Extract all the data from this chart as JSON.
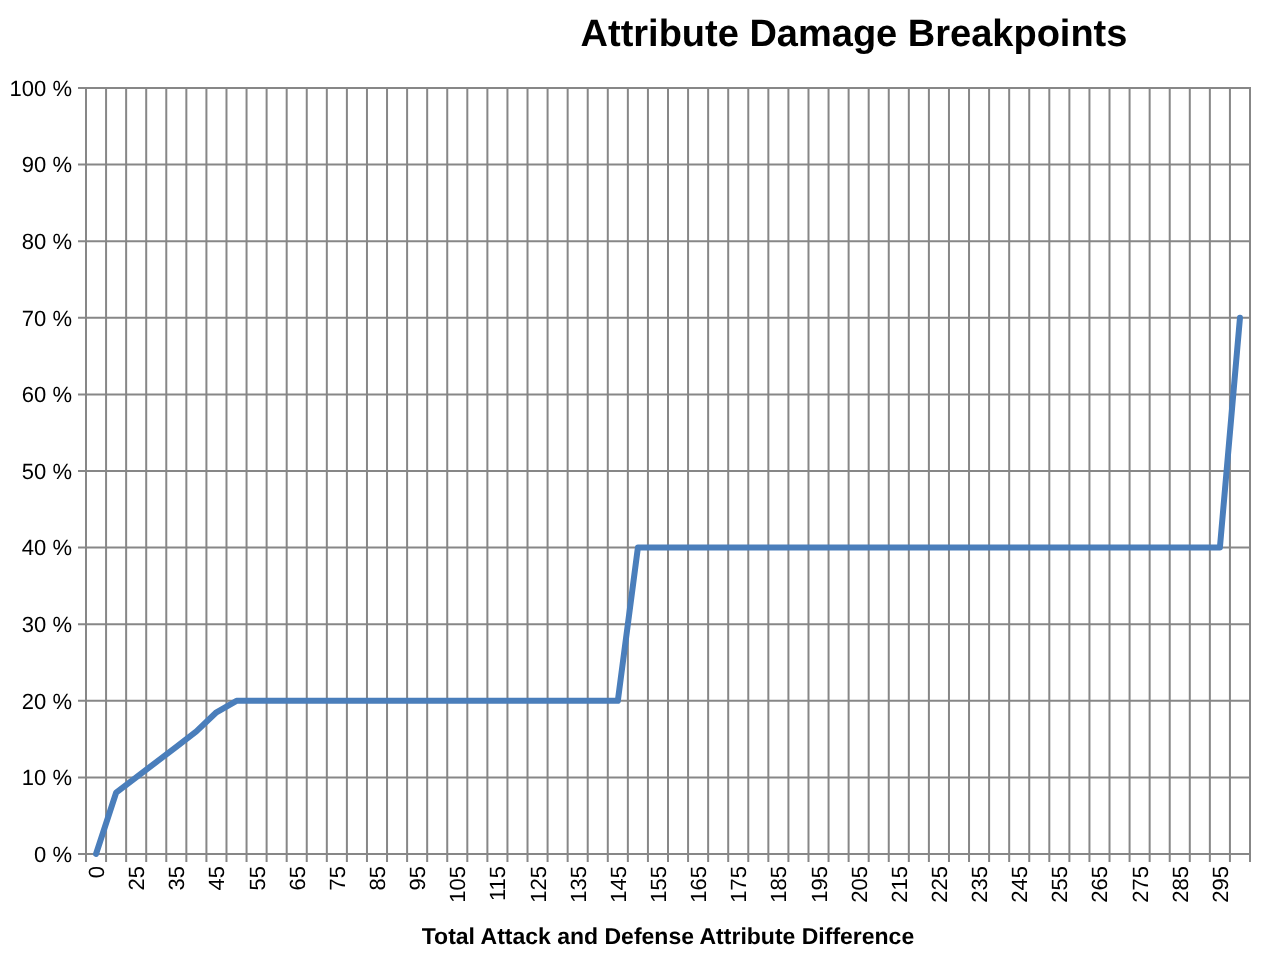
{
  "chart_data": {
    "type": "line",
    "title": "Attribute Damage Breakpoints",
    "xlabel": "Total Attack and Defense Attribute Difference",
    "categories": [
      "0",
      null,
      "25",
      null,
      "35",
      null,
      "45",
      null,
      "55",
      null,
      "65",
      null,
      "75",
      null,
      "85",
      null,
      "95",
      null,
      "105",
      null,
      "115",
      null,
      "125",
      null,
      "135",
      null,
      "145",
      null,
      "155",
      null,
      "165",
      null,
      "175",
      null,
      "185",
      null,
      "195",
      null,
      "205",
      null,
      "215",
      null,
      "225",
      null,
      "235",
      null,
      "245",
      null,
      "255",
      null,
      "265",
      null,
      "275",
      null,
      "285",
      null,
      "295",
      null
    ],
    "values": [
      0,
      8,
      10,
      12,
      14,
      16,
      18.5,
      20,
      20,
      20,
      20,
      20,
      20,
      20,
      20,
      20,
      20,
      20,
      20,
      20,
      20,
      20,
      20,
      20,
      20,
      20,
      20,
      40,
      40,
      40,
      40,
      40,
      40,
      40,
      40,
      40,
      40,
      40,
      40,
      40,
      40,
      40,
      40,
      40,
      40,
      40,
      40,
      40,
      40,
      40,
      40,
      40,
      40,
      40,
      40,
      40,
      40,
      70
    ],
    "color": "#4a7ebb",
    "ylim": [
      0,
      100
    ],
    "yticks": [
      {
        "value": 0,
        "label": "0 %"
      },
      {
        "value": 10,
        "label": "10 %"
      },
      {
        "value": 20,
        "label": "20 %"
      },
      {
        "value": 30,
        "label": "30 %"
      },
      {
        "value": 40,
        "label": "40 %"
      },
      {
        "value": 50,
        "label": "50 %"
      },
      {
        "value": 60,
        "label": "60 %"
      },
      {
        "value": 70,
        "label": "70 %"
      },
      {
        "value": 80,
        "label": "80 %"
      },
      {
        "value": 90,
        "label": "90 %"
      },
      {
        "value": 100,
        "label": "100 %"
      }
    ],
    "grid": true
  }
}
